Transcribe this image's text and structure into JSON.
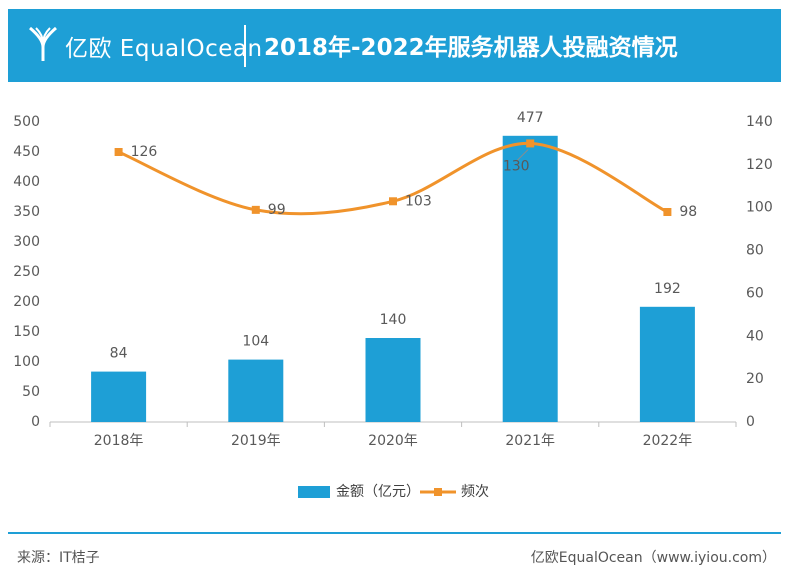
{
  "header": {
    "logo_text": "亿欧 EqualOcean",
    "title": "2018年-2022年服务机器人投融资情况"
  },
  "colors": {
    "header_bg": "#1e9fd6",
    "bar": "#1e9fd6",
    "line": "#f0932b"
  },
  "chart_data": {
    "type": "bar+line",
    "title": "2018年-2022年服务机器人投融资情况",
    "categories": [
      "2018年",
      "2019年",
      "2020年",
      "2021年",
      "2022年"
    ],
    "series": [
      {
        "name": "金额（亿元）",
        "type": "bar",
        "axis": "left",
        "values": [
          84,
          104,
          140,
          477,
          192
        ]
      },
      {
        "name": "频次",
        "type": "line",
        "axis": "right",
        "values": [
          126,
          99,
          103,
          130,
          98
        ]
      }
    ],
    "y_left": {
      "min": 0,
      "max": 500,
      "step": 50
    },
    "y_right": {
      "min": 0,
      "max": 140,
      "step": 20
    },
    "legend": {
      "position": "bottom",
      "items": [
        "金额（亿元）",
        "频次"
      ]
    },
    "grid": false
  },
  "footer": {
    "source": "来源：IT桔子",
    "credit": "亿欧EqualOcean（www.iyiou.com）"
  }
}
